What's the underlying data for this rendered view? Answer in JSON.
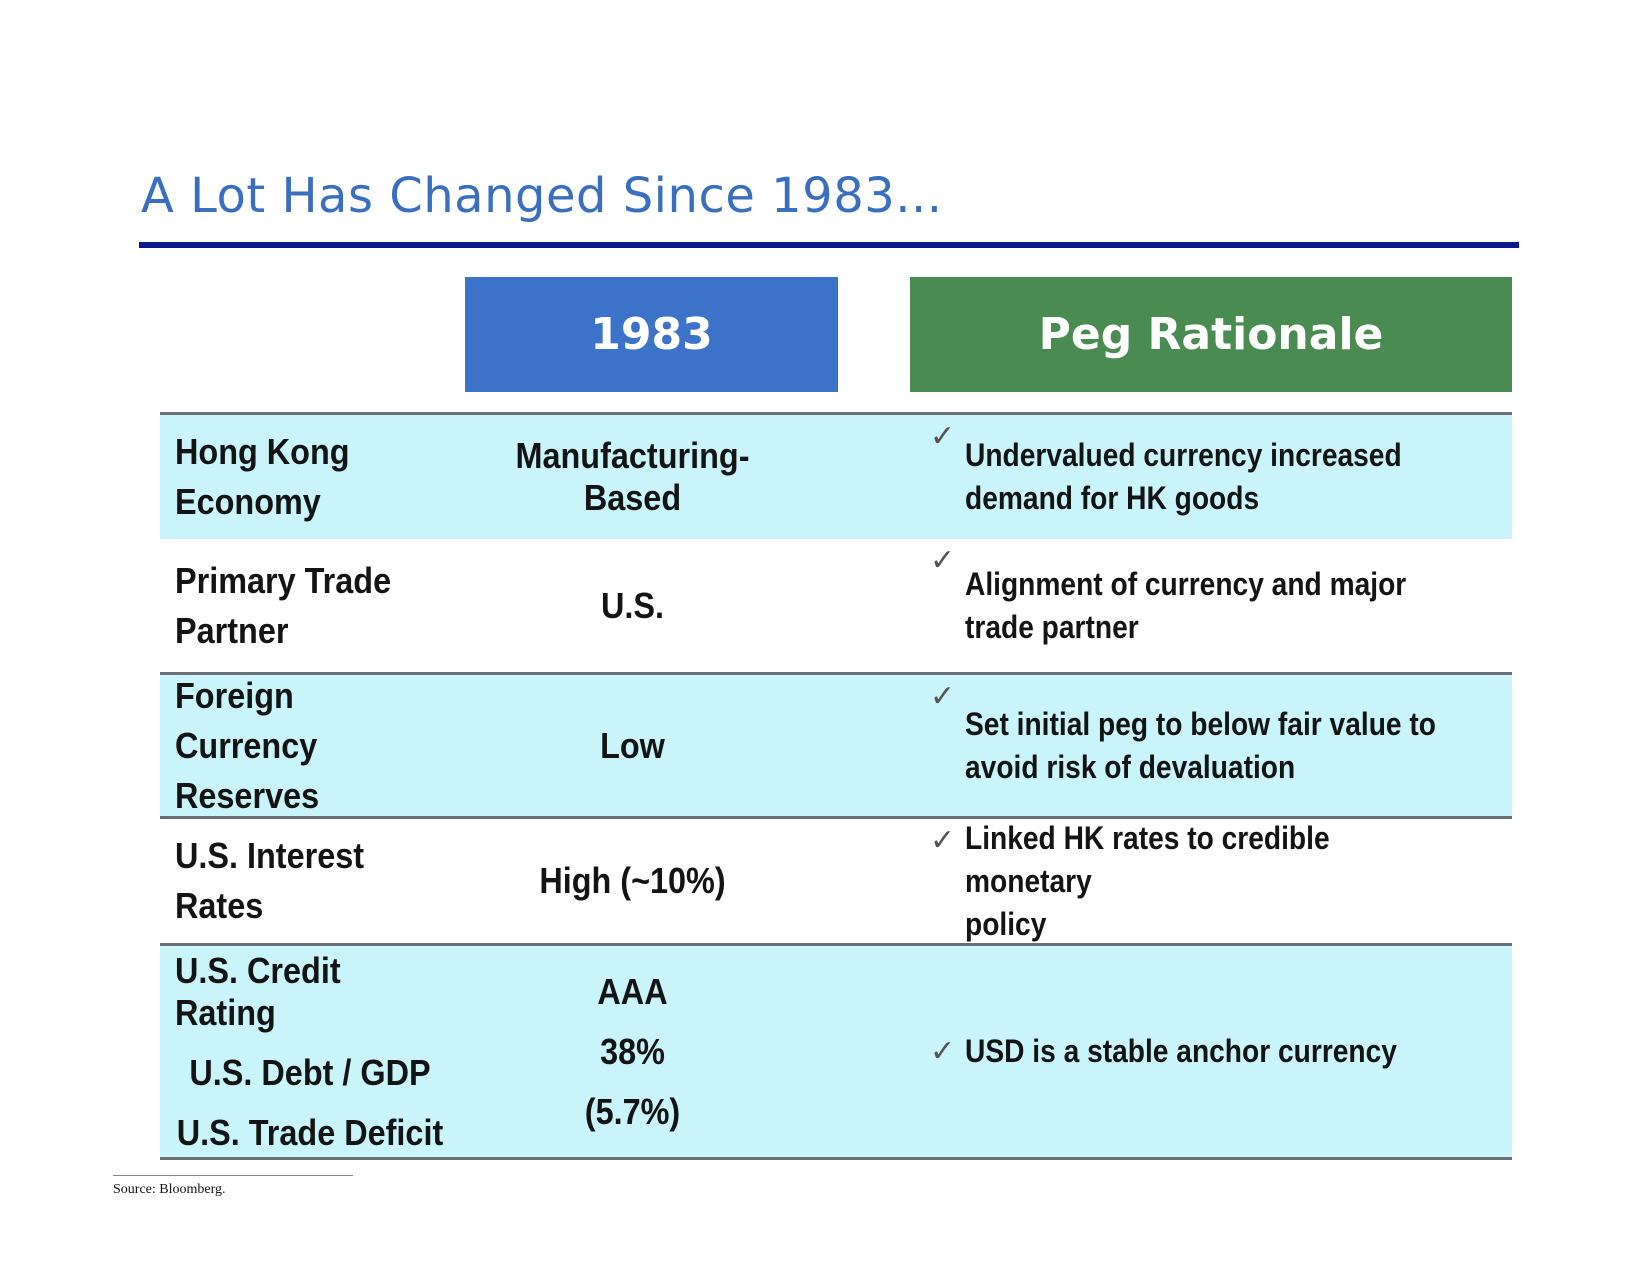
{
  "title": "A Lot Has Changed Since 1983...",
  "headers": {
    "year": "1983",
    "rationale": "Peg Rationale"
  },
  "check_symbol": "✓",
  "rows": [
    {
      "label_line1": "Hong Kong",
      "label_line2": "Economy",
      "value": "Manufacturing-Based",
      "rationale_line1": "Undervalued currency increased",
      "rationale_line2": "demand for HK goods"
    },
    {
      "label_line1": "Primary Trade",
      "label_line2": "Partner",
      "value": "U.S.",
      "rationale_line1": "Alignment of currency and major",
      "rationale_line2": "trade partner"
    },
    {
      "label_line1": "Foreign Currency",
      "label_line2": "Reserves",
      "value": "Low",
      "rationale_line1": "Set initial peg to below fair value to",
      "rationale_line2": "avoid risk of devaluation"
    },
    {
      "label_line1": "U.S. Interest",
      "label_line2": "Rates",
      "value": "High (~10%)",
      "rationale_line1": "Linked HK rates to credible monetary",
      "rationale_line2": "policy"
    }
  ],
  "last_row": {
    "labels": [
      "U.S. Credit Rating",
      "U.S. Debt / GDP",
      "U.S. Trade Deficit"
    ],
    "values": [
      "AAA",
      "38%",
      "(5.7%)"
    ],
    "rationale": "USD is a stable anchor currency"
  },
  "source": "Source: Bloomberg.",
  "colors": {
    "title": "#3a6fc0",
    "rule": "#0a1a8c",
    "year_header": "#3c73c8",
    "rationale_header": "#4a8b52",
    "row_shade": "#c9f4f9"
  }
}
